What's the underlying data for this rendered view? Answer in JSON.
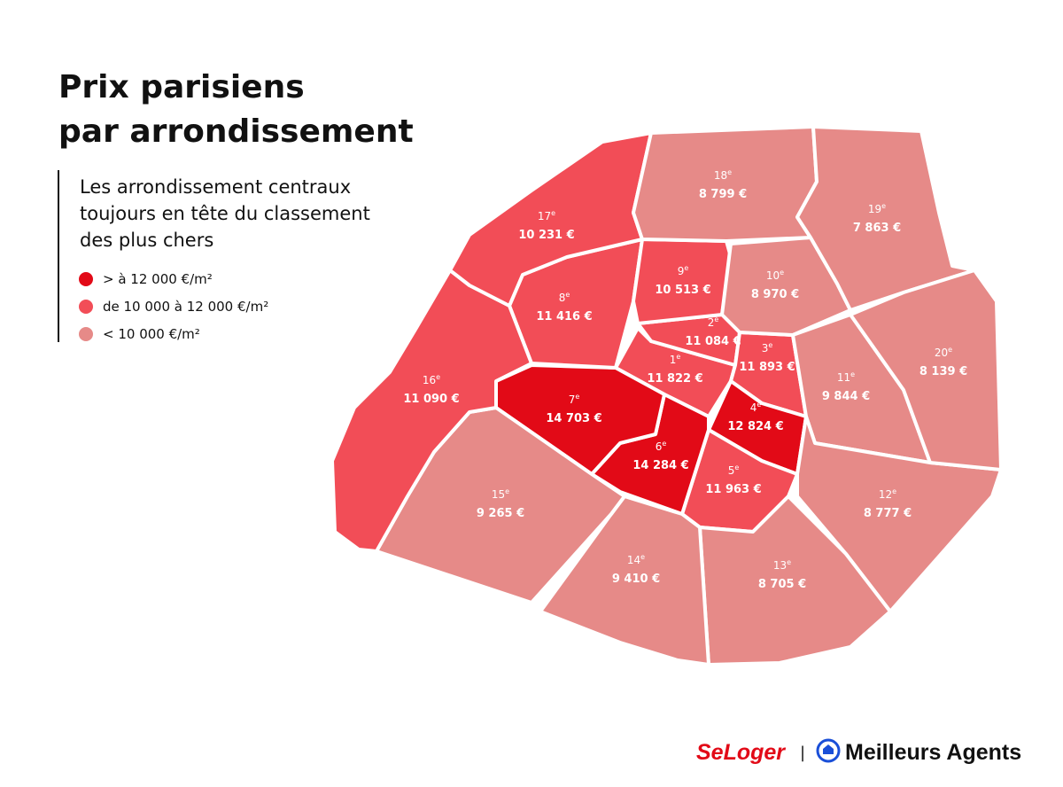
{
  "header": {
    "title": [
      "Prix parisiens",
      "par arrondissement"
    ],
    "subtitle": [
      "Les arrondissement centraux",
      "toujours en tête du classement",
      "des plus chers"
    ]
  },
  "legend": [
    {
      "label": "> à 12 000 €/m²",
      "color": "#e20a17"
    },
    {
      "label": "de 10 000 à 12 000 €/m²",
      "color": "#f24d57"
    },
    {
      "label": "< 10 000 €/m²",
      "color": "#e68a88"
    }
  ],
  "districts": [
    {
      "number": "1",
      "suffix": "e",
      "price": "11 822 €",
      "color": "#f24d57"
    },
    {
      "number": "2",
      "suffix": "e",
      "price": "11 084 €",
      "color": "#f24d57"
    },
    {
      "number": "3",
      "suffix": "e",
      "price": "11 893 €",
      "color": "#f24d57"
    },
    {
      "number": "4",
      "suffix": "e",
      "price": "12 824 €",
      "color": "#e20a17"
    },
    {
      "number": "5",
      "suffix": "e",
      "price": "11 963 €",
      "color": "#f24d57"
    },
    {
      "number": "6",
      "suffix": "e",
      "price": "14 284 €",
      "color": "#e20a17"
    },
    {
      "number": "7",
      "suffix": "e",
      "price": "14 703 €",
      "color": "#e20a17"
    },
    {
      "number": "8",
      "suffix": "e",
      "price": "11 416 €",
      "color": "#f24d57"
    },
    {
      "number": "9",
      "suffix": "e",
      "price": "10 513 €",
      "color": "#f24d57"
    },
    {
      "number": "10",
      "suffix": "e",
      "price": "8 970 €",
      "color": "#e68a88"
    },
    {
      "number": "11",
      "suffix": "e",
      "price": "9 844 €",
      "color": "#e68a88"
    },
    {
      "number": "12",
      "suffix": "e",
      "price": "8 777 €",
      "color": "#e68a88"
    },
    {
      "number": "13",
      "suffix": "e",
      "price": "8 705 €",
      "color": "#e68a88"
    },
    {
      "number": "14",
      "suffix": "e",
      "price": "9 410 €",
      "color": "#e68a88"
    },
    {
      "number": "15",
      "suffix": "e",
      "price": "9 265 €",
      "color": "#e68a88"
    },
    {
      "number": "16",
      "suffix": "e",
      "price": "11 090 €",
      "color": "#f24d57"
    },
    {
      "number": "17",
      "suffix": "e",
      "price": "10 231 €",
      "color": "#f24d57"
    },
    {
      "number": "18",
      "suffix": "e",
      "price": "8 799 €",
      "color": "#e68a88"
    },
    {
      "number": "19",
      "suffix": "e",
      "price": "7 863 €",
      "color": "#e68a88"
    },
    {
      "number": "20",
      "suffix": "e",
      "price": "8 139 €",
      "color": "#e68a88"
    }
  ],
  "brands": {
    "left": "SeLoger",
    "separator": "|",
    "right": "Meilleurs Agents"
  }
}
